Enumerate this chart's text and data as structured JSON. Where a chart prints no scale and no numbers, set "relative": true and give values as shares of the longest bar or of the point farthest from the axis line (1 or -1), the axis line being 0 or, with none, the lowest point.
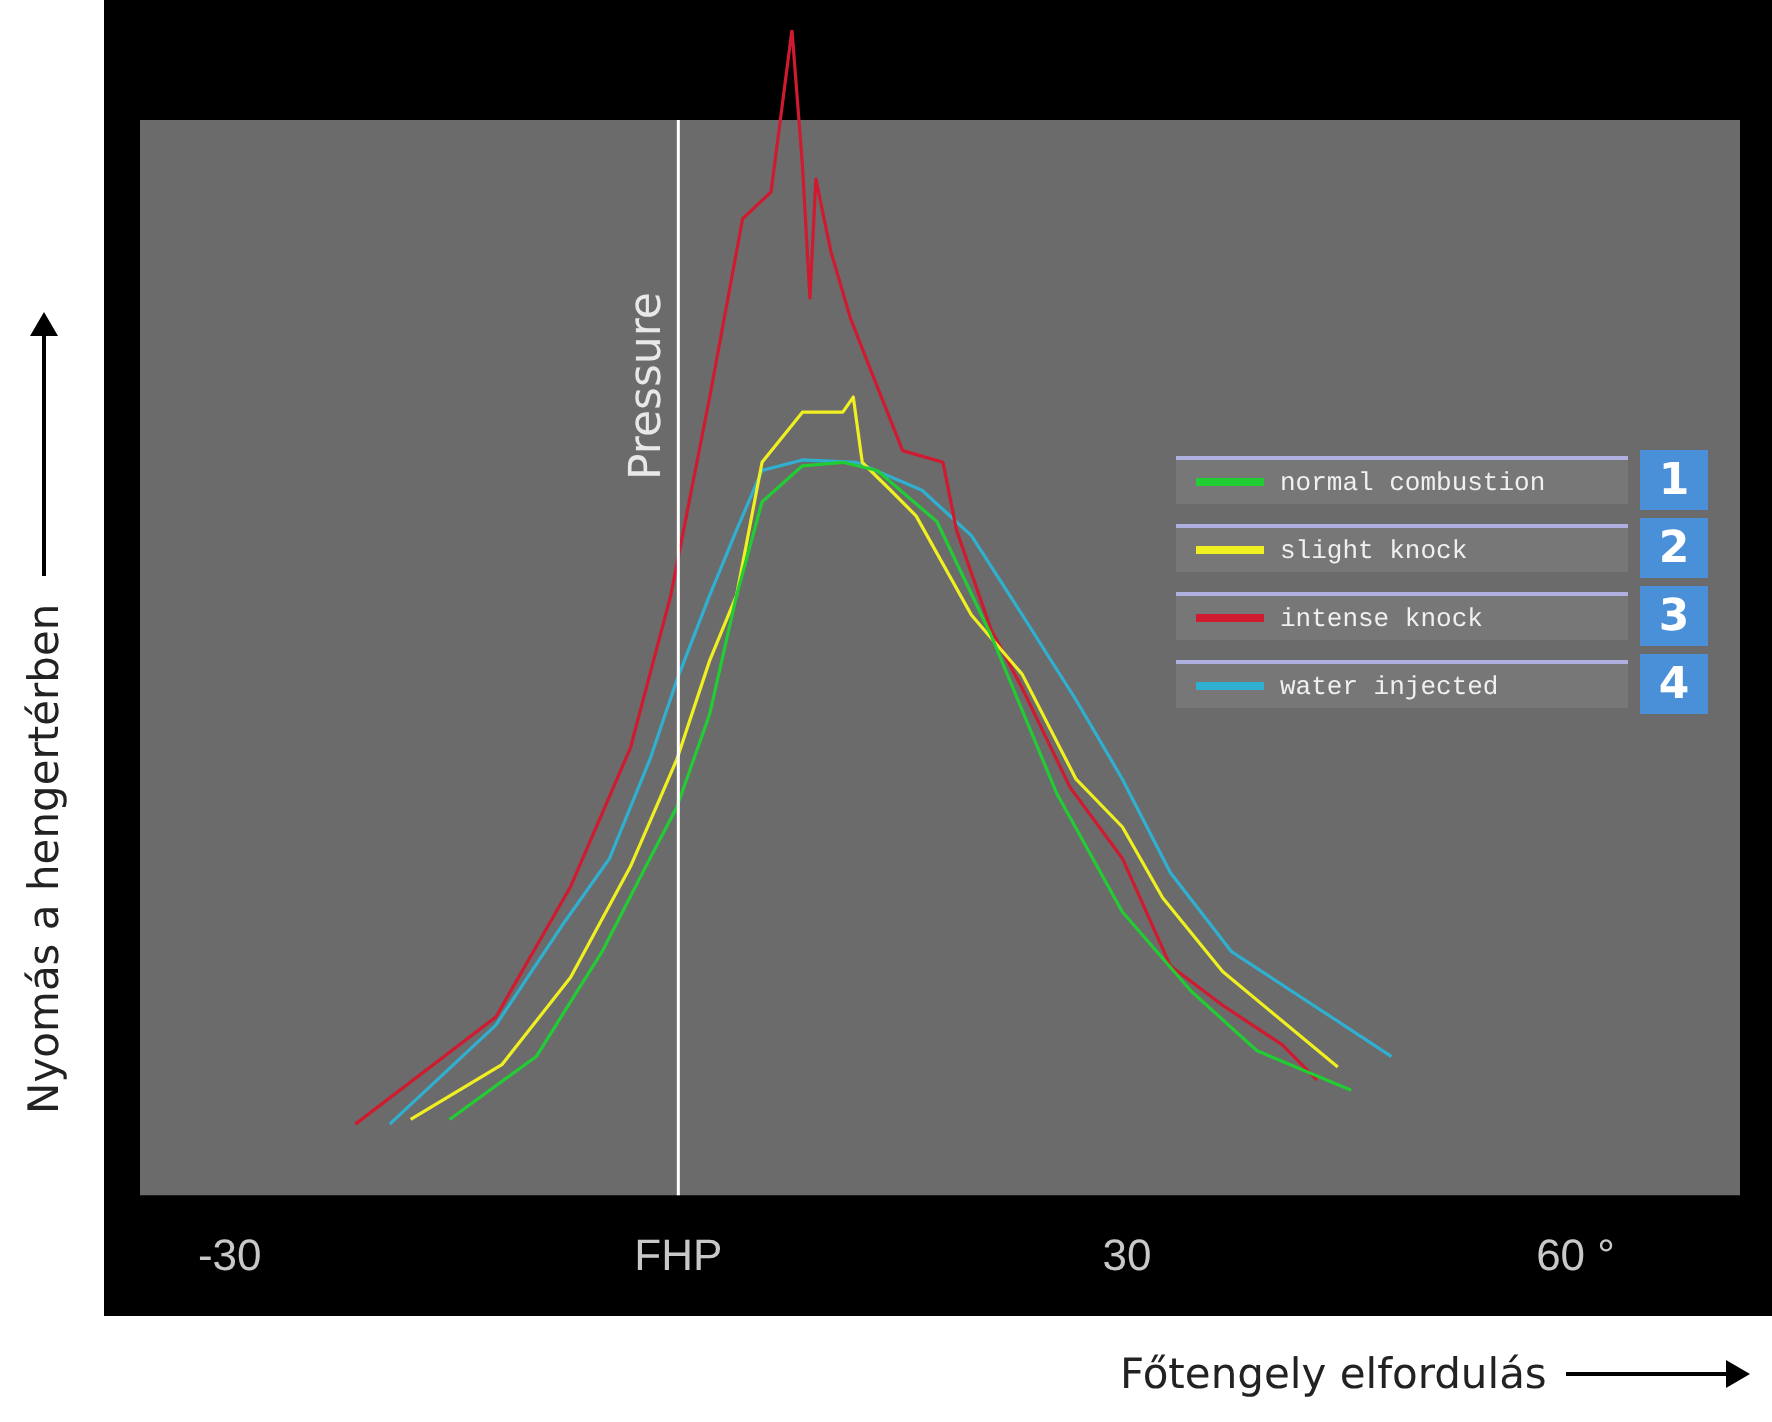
{
  "chart_data": {
    "type": "line",
    "xlabel": "Főtengely elfordulás",
    "ylabel": "Nyomás a hengertérben",
    "relative": true,
    "xlim": [
      -36,
      71
    ],
    "xticks": [
      -30,
      {
        "value": 0,
        "label": "FHP"
      },
      30,
      {
        "value": 60,
        "label": "60 °"
      }
    ],
    "legend": "right",
    "grid": false,
    "marker": "none",
    "line_style": "solid",
    "ref_lines": [
      {
        "axis": "x",
        "value": 0,
        "label": "Pressure",
        "color": "#ffffff"
      }
    ],
    "annotations": [
      "1",
      "2",
      "3",
      "4"
    ],
    "series": [
      {
        "name": "normal combustion",
        "color": "#22cc33",
        "x": [
          -15.3,
          -9.5,
          -5.1,
          -1.9,
          -0.1,
          2.1,
          3.9,
          5.6,
          8.3,
          11.0,
          13.3,
          17.3,
          20.9,
          25.3,
          29.7,
          34.3,
          38.7,
          45.0
        ],
        "values": [
          0.065,
          0.119,
          0.209,
          0.289,
          0.333,
          0.413,
          0.515,
          0.595,
          0.626,
          0.629,
          0.622,
          0.578,
          0.481,
          0.345,
          0.243,
          0.175,
          0.124,
          0.09
        ]
      },
      {
        "name": "slight knock",
        "color": "#f0f020",
        "x": [
          -17.9,
          -11.8,
          -7.2,
          -3.2,
          -0.1,
          2.1,
          3.9,
          5.6,
          8.3,
          11.0,
          11.7,
          12.3,
          14.2,
          15.9,
          19.6,
          23.0,
          26.6,
          29.7,
          32.4,
          36.4,
          44.1
        ],
        "values": [
          0.065,
          0.112,
          0.187,
          0.282,
          0.374,
          0.459,
          0.515,
          0.629,
          0.672,
          0.672,
          0.685,
          0.629,
          0.605,
          0.583,
          0.498,
          0.447,
          0.357,
          0.316,
          0.255,
          0.192,
          0.11
        ]
      },
      {
        "name": "intense knock",
        "color": "#d01a30",
        "x": [
          -21.6,
          -12.2,
          -7.2,
          -3.2,
          -0.5,
          2.1,
          4.3,
          6.2,
          7.6,
          8.3,
          8.8,
          9.2,
          10.2,
          11.5,
          12.9,
          15.0,
          17.7,
          18.6,
          20.9,
          23.0,
          26.2,
          29.7,
          32.9,
          36.4,
          40.4,
          42.7
        ],
        "values": [
          0.061,
          0.153,
          0.265,
          0.384,
          0.515,
          0.685,
          0.838,
          0.861,
          1,
          0.884,
          0.77,
          0.872,
          0.81,
          0.753,
          0.707,
          0.639,
          0.629,
          0.571,
          0.486,
          0.435,
          0.35,
          0.289,
          0.197,
          0.163,
          0.129,
          0.099
        ]
      },
      {
        "name": "water injected",
        "color": "#30b0d0",
        "x": [
          -19.3,
          -12.2,
          -7.8,
          -4.6,
          -1.9,
          -0.1,
          2.1,
          3.9,
          5.6,
          8.3,
          11.9,
          16.3,
          19.6,
          23.0,
          26.6,
          29.7,
          32.9,
          37.0,
          47.7
        ],
        "values": [
          0.061,
          0.146,
          0.231,
          0.289,
          0.374,
          0.442,
          0.515,
          0.571,
          0.622,
          0.631,
          0.629,
          0.605,
          0.566,
          0.498,
          0.425,
          0.357,
          0.277,
          0.209,
          0.119
        ]
      }
    ]
  }
}
